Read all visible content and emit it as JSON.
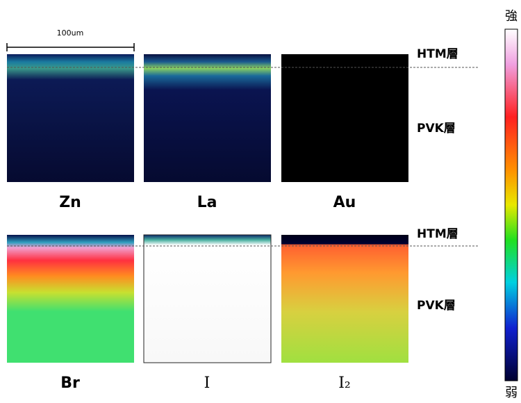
{
  "scale_bar": "100um",
  "layers": {
    "top_row": {
      "htm": "HTM層",
      "pvk": "PVK層"
    },
    "bottom_row": {
      "htm": "HTM層",
      "pvk": "PVK層"
    }
  },
  "panels": [
    [
      "Zn",
      "La",
      "Au"
    ],
    [
      "Br",
      "I",
      "I₂"
    ]
  ],
  "colorbar": {
    "high": "強",
    "low": "弱"
  }
}
